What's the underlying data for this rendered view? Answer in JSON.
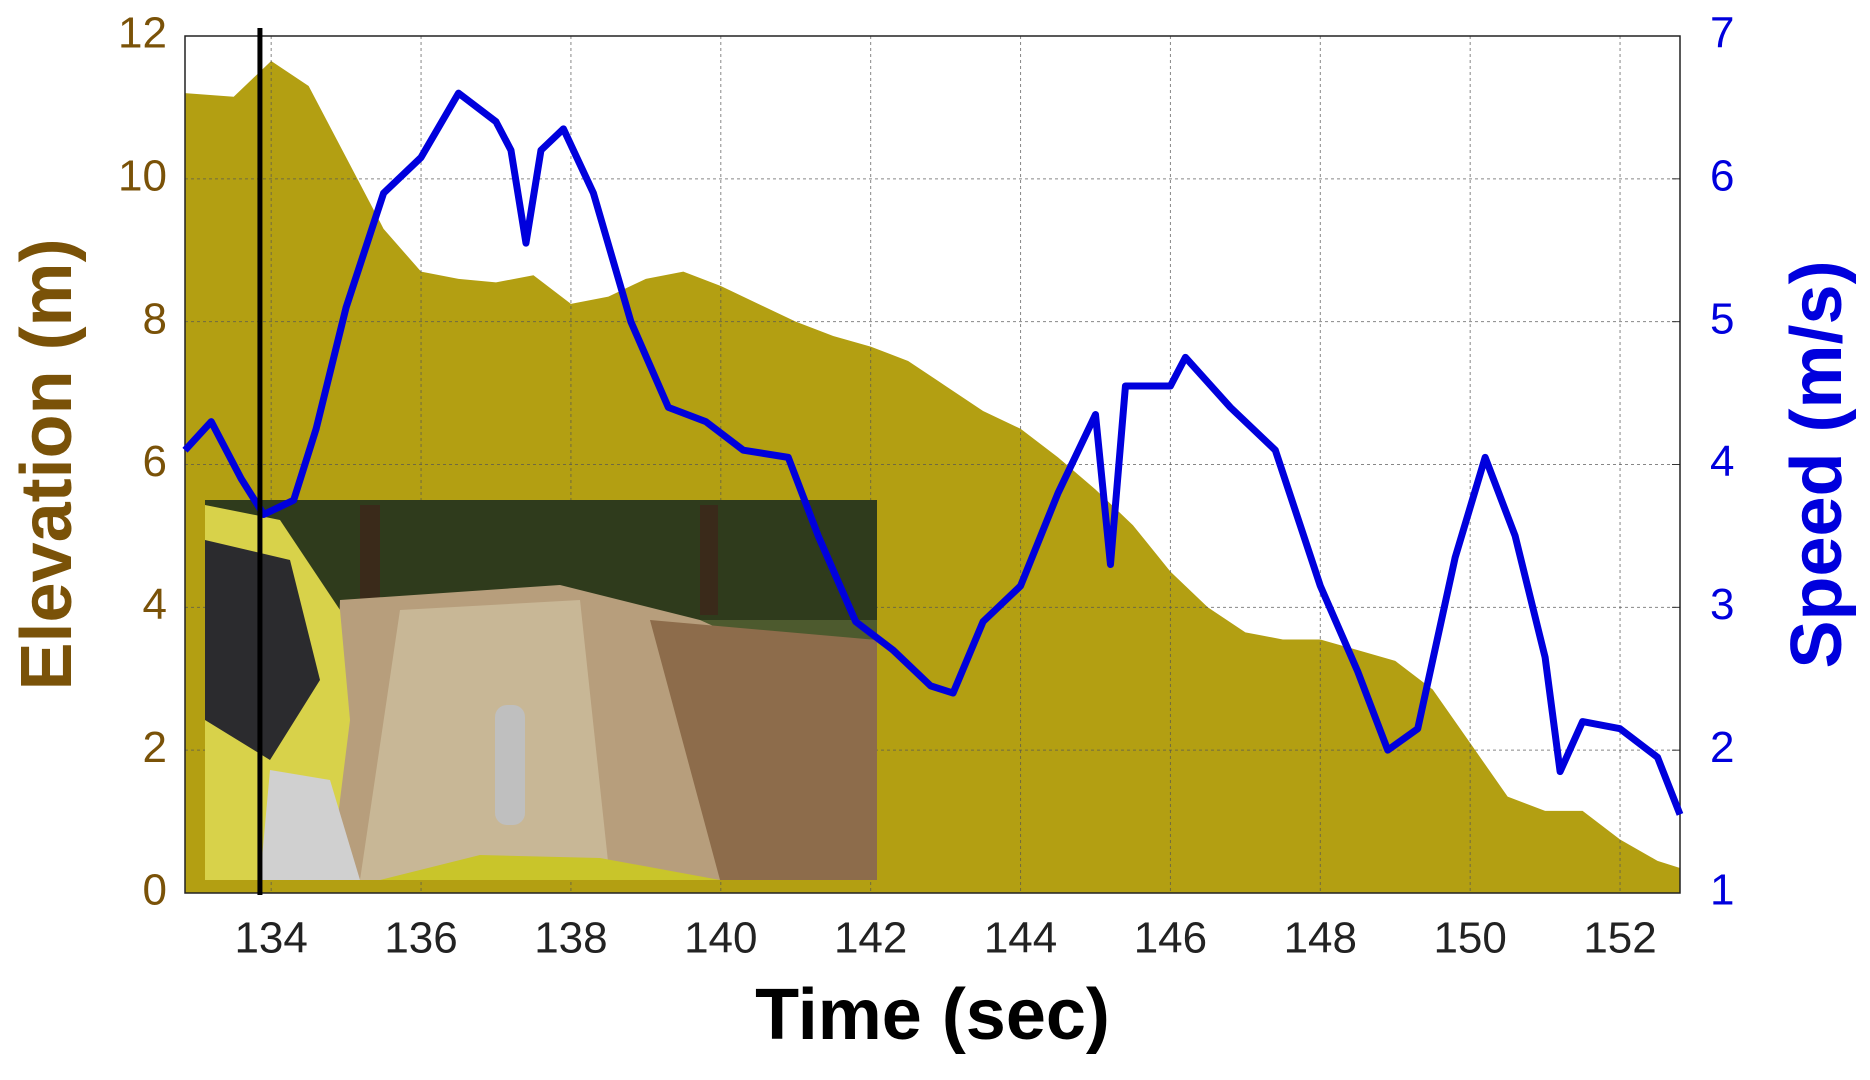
{
  "chart_data": {
    "type": "combo",
    "xlabel": "Time (sec)",
    "ylabel": "Elevation (m)",
    "y2label": "Speed (m/s)",
    "xlim": [
      132.85,
      152.8
    ],
    "xticks": [
      134,
      136,
      138,
      140,
      142,
      144,
      146,
      148,
      150,
      152
    ],
    "ylim": [
      0,
      12
    ],
    "yticks": [
      0,
      2,
      4,
      6,
      8,
      10,
      12
    ],
    "y2lim": [
      1,
      7
    ],
    "y2ticks": [
      1,
      2,
      3,
      4,
      5,
      6,
      7
    ],
    "grid": true,
    "ycolor": "#7a5208",
    "y2color": "#0000dd",
    "cursor_x": 133.85,
    "series": [
      {
        "type": "area",
        "color": "#b39f12",
        "x": [
          132.85,
          133.5,
          134,
          134.5,
          135,
          135.5,
          136,
          136.5,
          137,
          137.5,
          138,
          138.5,
          139,
          139.5,
          140,
          140.5,
          141,
          141.5,
          142,
          142.5,
          143,
          143.5,
          144,
          144.5,
          145,
          145.5,
          146,
          146.5,
          147,
          147.5,
          148,
          148.5,
          149,
          149.5,
          150,
          150.5,
          151,
          151.5,
          152,
          152.5,
          152.8
        ],
        "values": [
          11.2,
          11.15,
          11.65,
          11.3,
          10.3,
          9.3,
          8.7,
          8.6,
          8.55,
          8.65,
          8.25,
          8.35,
          8.6,
          8.7,
          8.5,
          8.25,
          8.0,
          7.8,
          7.65,
          7.45,
          7.1,
          6.75,
          6.5,
          6.1,
          5.65,
          5.15,
          4.5,
          4.0,
          3.65,
          3.55,
          3.55,
          3.4,
          3.25,
          2.85,
          2.1,
          1.35,
          1.15,
          1.15,
          0.75,
          0.45,
          0.35
        ]
      },
      {
        "type": "line",
        "axis": "y2",
        "color": "#0000dd",
        "x": [
          132.85,
          133.2,
          133.6,
          133.9,
          134.3,
          134.6,
          135,
          135.5,
          136,
          136.5,
          137,
          137.2,
          137.4,
          137.6,
          137.9,
          138.3,
          138.8,
          139.3,
          139.8,
          140.3,
          140.9,
          141.3,
          141.8,
          142.3,
          142.8,
          143.1,
          143.5,
          144,
          144.5,
          145,
          145.2,
          145.4,
          146,
          146.2,
          146.8,
          147.4,
          148,
          148.5,
          148.9,
          149.3,
          149.8,
          150.2,
          150.6,
          151,
          151.2,
          151.5,
          152,
          152.5,
          152.8
        ],
        "values": [
          4.1,
          4.3,
          3.9,
          3.65,
          3.75,
          4.25,
          5.1,
          5.9,
          6.15,
          6.6,
          6.4,
          6.2,
          5.55,
          6.2,
          6.35,
          5.9,
          5.0,
          4.4,
          4.3,
          4.1,
          4.05,
          3.5,
          2.9,
          2.7,
          2.45,
          2.4,
          2.9,
          3.15,
          3.8,
          4.35,
          3.3,
          4.55,
          4.55,
          4.75,
          4.4,
          4.1,
          3.15,
          2.55,
          2.0,
          2.15,
          3.35,
          4.05,
          3.5,
          2.65,
          1.85,
          2.2,
          2.15,
          1.95,
          1.55
        ]
      }
    ]
  }
}
